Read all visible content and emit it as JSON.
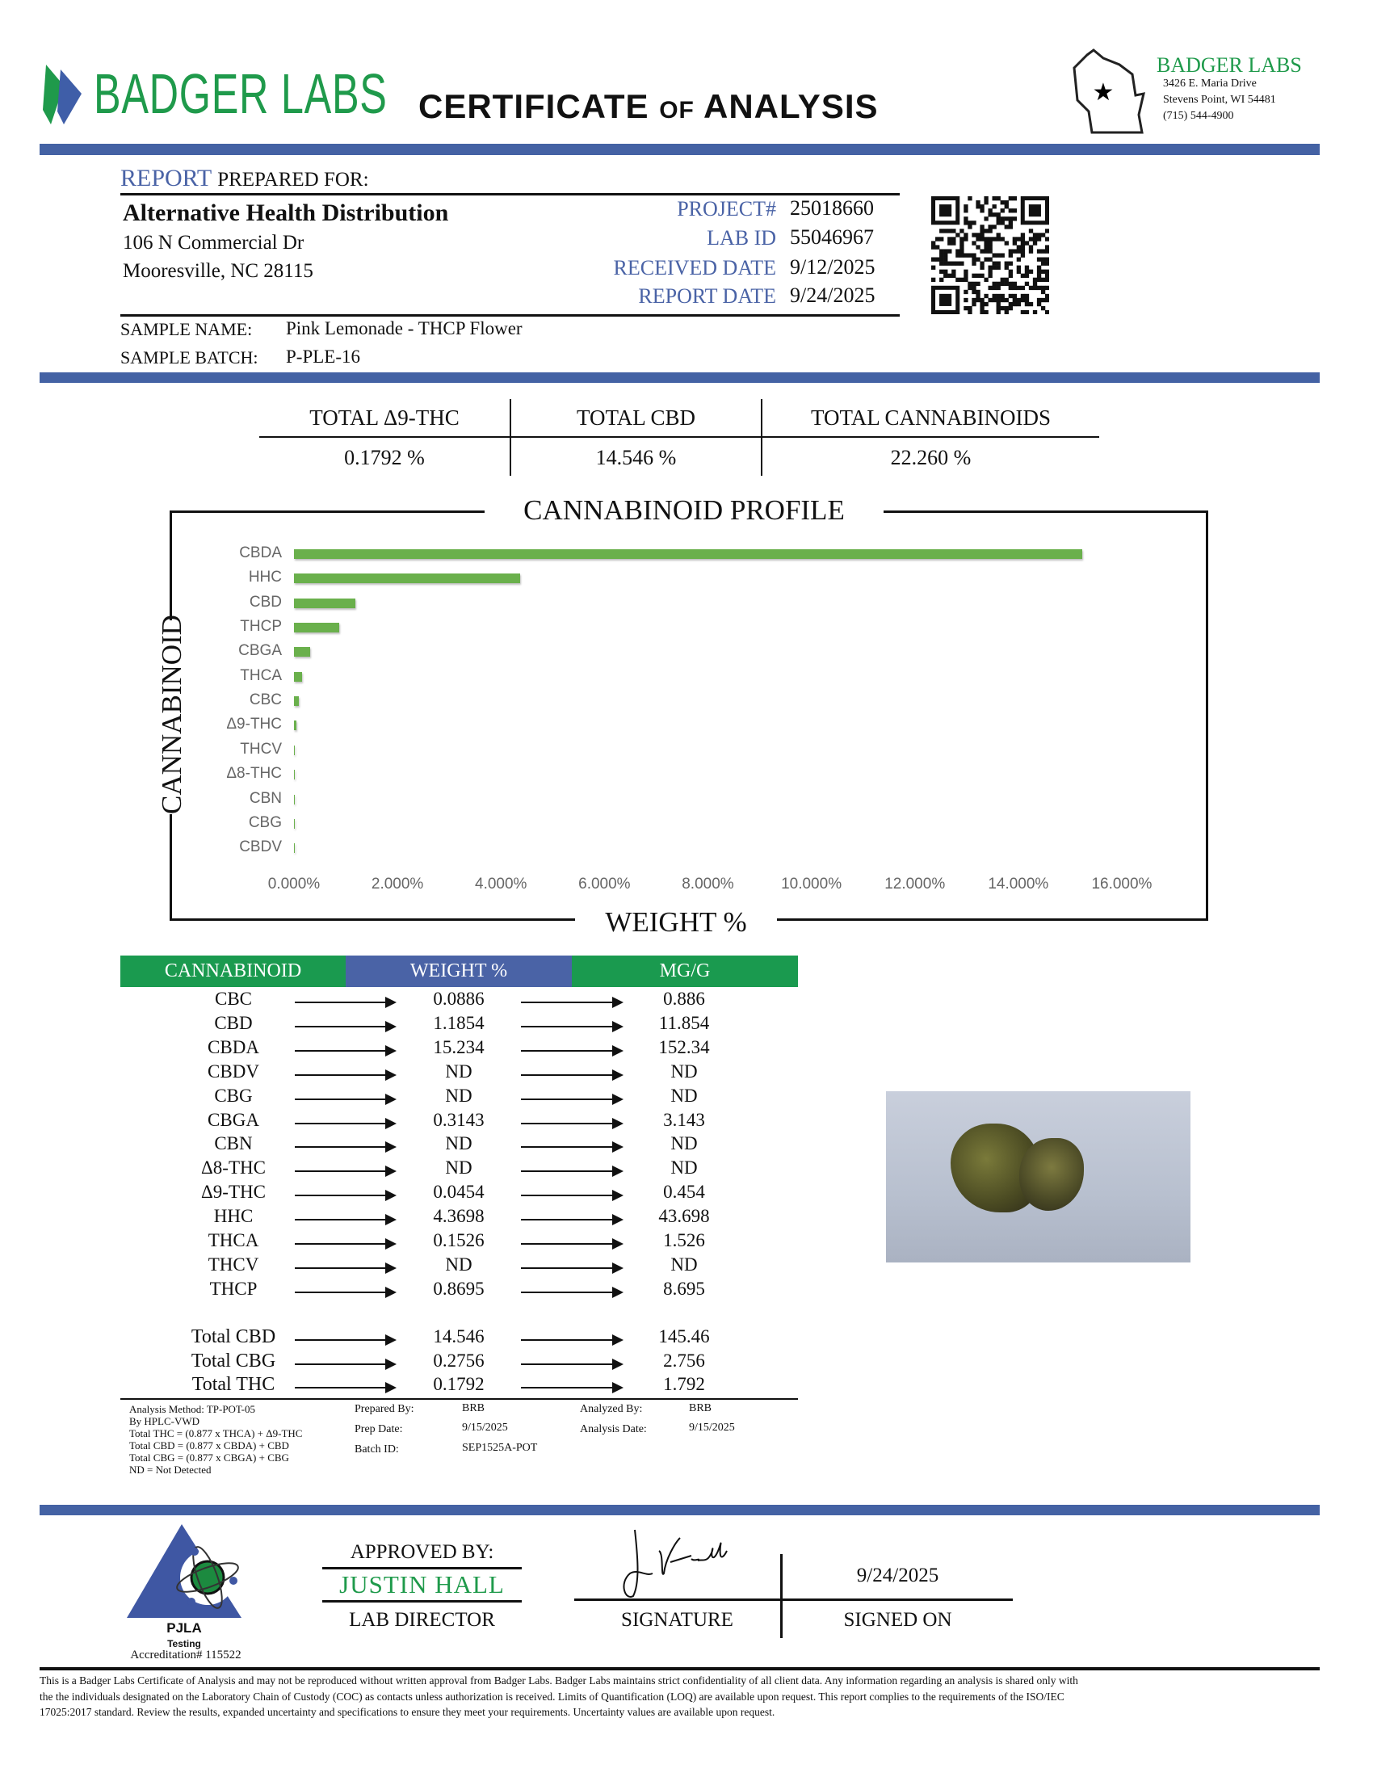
{
  "header": {
    "logo_text": "BADGER LABS",
    "title_main1": "CERTIFICATE",
    "title_of": "of",
    "title_main2": "ANALYSIS",
    "lab_name": "BADGER LABS",
    "address1": "3426 E. Maria Drive",
    "address2": "Stevens Point, WI 54481",
    "phone": "(715) 544-4900"
  },
  "report": {
    "label_report": "REPORT",
    "label_prepared": "PREPARED FOR:",
    "client_name": "Alternative Health Distribution",
    "client_address1": "106 N Commercial Dr",
    "client_address2": "Mooresville, NC 28115",
    "fields": [
      {
        "label": "PROJECT#",
        "value": "25018660"
      },
      {
        "label": "LAB ID",
        "value": "55046967"
      },
      {
        "label": "RECEIVED DATE",
        "value": "9/12/2025"
      },
      {
        "label": "REPORT DATE",
        "value": "9/24/2025"
      }
    ],
    "sample_name_label": "SAMPLE NAME:",
    "sample_name": "Pink Lemonade - THCP Flower",
    "sample_batch_label": "SAMPLE BATCH:",
    "sample_batch": "P-PLE-16"
  },
  "totals": [
    {
      "label": "TOTAL Δ9-THC",
      "value": "0.1792 %"
    },
    {
      "label": "TOTAL CBD",
      "value": "14.546 %"
    },
    {
      "label": "TOTAL CANNABINOIDS",
      "value": "22.260 %"
    }
  ],
  "chart_data": {
    "type": "bar",
    "orientation": "horizontal",
    "title": "CANNABINOID PROFILE",
    "xlabel": "WEIGHT %",
    "ylabel": "CANNABINOID",
    "categories": [
      "CBDA",
      "HHC",
      "CBD",
      "THCP",
      "CBGA",
      "THCA",
      "CBC",
      "Δ9-THC",
      "THCV",
      "Δ8-THC",
      "CBN",
      "CBG",
      "CBDV"
    ],
    "values": [
      15.234,
      4.3698,
      1.1854,
      0.8695,
      0.3143,
      0.1526,
      0.0886,
      0.0454,
      0,
      0,
      0,
      0,
      0
    ],
    "xlim": [
      0,
      16
    ],
    "ticks": [
      "0.000%",
      "2.000%",
      "4.000%",
      "6.000%",
      "8.000%",
      "10.000%",
      "12.000%",
      "14.000%",
      "16.000%"
    ],
    "bar_color": "#6ab04c",
    "grid": false
  },
  "table": {
    "headers": [
      "CANNABINOID",
      "WEIGHT %",
      "MG/G"
    ],
    "header_colors": [
      "#1a9a4f",
      "#4a63a6",
      "#1a9a4f"
    ],
    "rows": [
      [
        "CBC",
        "0.0886",
        "0.886"
      ],
      [
        "CBD",
        "1.1854",
        "11.854"
      ],
      [
        "CBDA",
        "15.234",
        "152.34"
      ],
      [
        "CBDV",
        "ND",
        "ND"
      ],
      [
        "CBG",
        "ND",
        "ND"
      ],
      [
        "CBGA",
        "0.3143",
        "3.143"
      ],
      [
        "CBN",
        "ND",
        "ND"
      ],
      [
        "Δ8-THC",
        "ND",
        "ND"
      ],
      [
        "Δ9-THC",
        "0.0454",
        "0.454"
      ],
      [
        "HHC",
        "4.3698",
        "43.698"
      ],
      [
        "THCA",
        "0.1526",
        "1.526"
      ],
      [
        "THCV",
        "ND",
        "ND"
      ],
      [
        "THCP",
        "0.8695",
        "8.695"
      ]
    ],
    "total_rows": [
      [
        "Total CBD",
        "14.546",
        "145.46"
      ],
      [
        "Total CBG",
        "0.2756",
        "2.756"
      ],
      [
        "Total THC",
        "0.1792",
        "1.792"
      ]
    ]
  },
  "notes": [
    "Analysis Method: TP-POT-05",
    "By HPLC-VWD",
    "Total THC = (0.877 x  THCA) + Δ9-THC",
    "Total CBD = (0.877 x  CBDA) + CBD",
    "Total CBG = (0.877 x  CBGA) + CBG",
    "ND = Not Detected"
  ],
  "prep": {
    "prepared_by_label": "Prepared By:",
    "prepared_by": "BRB",
    "prep_date_label": "Prep Date:",
    "prep_date": "9/15/2025",
    "batch_id_label": "Batch ID:",
    "batch_id": "SEP1525A-POT",
    "analyzed_by_label": "Analyzed By:",
    "analyzed_by": "BRB",
    "analysis_date_label": "Analysis Date:",
    "analysis_date": "9/15/2025"
  },
  "approval": {
    "pjla": "PJLA",
    "pjla_sub": "Testing",
    "accreditation": "Accreditation# 115522",
    "approved_by": "APPROVED BY:",
    "name": "JUSTIN HALL",
    "role": "LAB DIRECTOR",
    "signature_text": "J Hall",
    "signature_label": "SIGNATURE",
    "signed_date": "9/24/2025",
    "signed_on_label": "SIGNED ON"
  },
  "disclaimer": [
    "This is a Badger Labs Certificate of Analysis and may not be reproduced without written approval from Badger Labs. Badger Labs maintains strict confidentiality of all client data. Any information regarding an analysis is shared only with",
    "the the individuals designated on the Laboratory Chain of Custody (COC) as contacts unless authorization is received. Limits of Quantification (LOQ) are available upon request. This report complies to the requirements of the ISO/IEC",
    "17025:2017 standard. Review the results, expanded uncertainty and specifications to ensure they meet your requirements. Uncertainty values are available upon request."
  ]
}
